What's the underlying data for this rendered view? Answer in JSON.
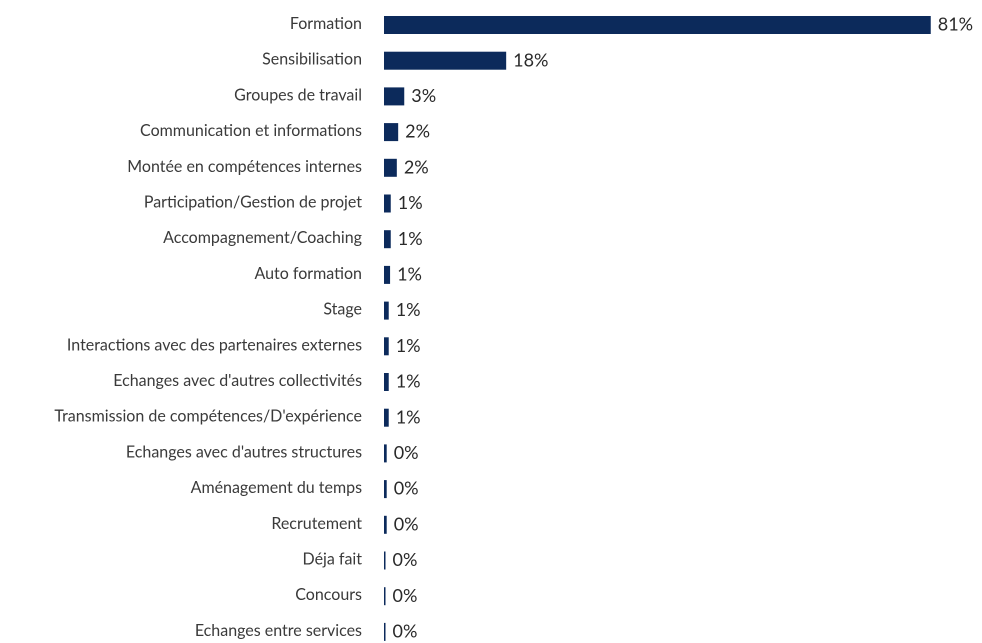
{
  "chart_data": {
    "type": "bar",
    "orientation": "horizontal",
    "color": "#0c2a5b",
    "categories": [
      "Formation",
      "Sensibilisation",
      "Groupes de travail",
      "Communication et informations",
      "Montée en compétences internes",
      "Participation/Gestion de projet",
      "Accompagnement/Coaching",
      "Auto formation",
      "Stage",
      "Interactions avec des partenaires externes",
      "Echanges avec d'autres collectivités",
      "Transmission de compétences/D'expérience",
      "Echanges avec d'autres structures",
      "Aménagement du temps",
      "Recrutement",
      "Déja fait",
      "Concours",
      "Echanges entre services"
    ],
    "values": [
      81,
      18.1,
      3,
      2.1,
      1.9,
      1,
      1,
      0.9,
      0.7,
      0.7,
      0.7,
      0.7,
      0.4,
      0.4,
      0.4,
      0.2,
      0.2,
      0.2
    ],
    "value_labels": [
      "81%",
      "18%",
      "3%",
      "2%",
      "2%",
      "1%",
      "1%",
      "1%",
      "1%",
      "1%",
      "1%",
      "1%",
      "0%",
      "0%",
      "0%",
      "0%",
      "0%",
      "0%"
    ]
  }
}
